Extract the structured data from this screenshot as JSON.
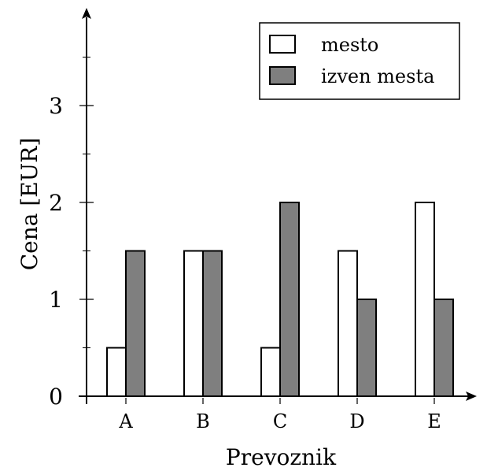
{
  "chart_data": {
    "type": "bar",
    "categories": [
      "A",
      "B",
      "C",
      "D",
      "E"
    ],
    "series": [
      {
        "name": "mesto",
        "values": [
          0.5,
          1.5,
          0.5,
          1.5,
          2
        ],
        "color": "#ffffff"
      },
      {
        "name": "izven mesta",
        "values": [
          1.5,
          1.5,
          2,
          1,
          1
        ],
        "color": "#7f7f7f"
      }
    ],
    "title": "",
    "xlabel": "Prevoznik",
    "ylabel": "Cena [EUR]",
    "ylim": [
      0,
      4
    ],
    "yticks": [
      0,
      1,
      2,
      3
    ],
    "ytick_labels": [
      "0",
      "1",
      "2",
      "3"
    ],
    "y_minor_ticks": [
      0.5,
      1.5,
      2.5,
      3.5
    ],
    "grid": false,
    "legend_position": "top-right"
  }
}
